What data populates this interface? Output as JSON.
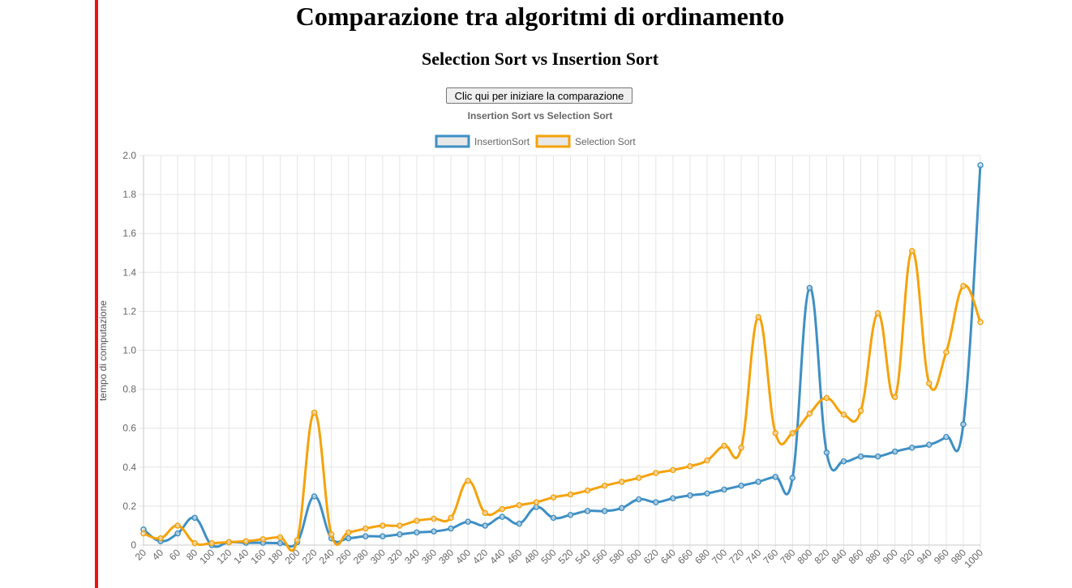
{
  "page": {
    "title": "Comparazione tra algoritmi di ordinamento",
    "subtitle": "Selection Sort vs Insertion Sort",
    "button_label": "Clic qui per iniziare la comparazione",
    "accent_color": "#ee1111"
  },
  "chart_data": {
    "type": "line",
    "title": "Insertion Sort vs Selection Sort",
    "xlabel": "",
    "ylabel": "tempo di computazione",
    "ylim": [
      0,
      2.0
    ],
    "y_ticks": [
      "0",
      "0.2",
      "0.4",
      "0.6",
      "0.8",
      "1.0",
      "1.2",
      "1.4",
      "1.6",
      "1.8",
      "2.0"
    ],
    "grid": true,
    "legend_position": "top",
    "categories": [
      "20",
      "40",
      "60",
      "80",
      "100",
      "120",
      "140",
      "160",
      "180",
      "200",
      "220",
      "240",
      "260",
      "280",
      "300",
      "320",
      "340",
      "360",
      "380",
      "400",
      "420",
      "440",
      "460",
      "480",
      "500",
      "520",
      "540",
      "560",
      "580",
      "600",
      "620",
      "640",
      "660",
      "680",
      "700",
      "720",
      "740",
      "760",
      "780",
      "800",
      "820",
      "840",
      "860",
      "880",
      "900",
      "920",
      "940",
      "960",
      "980",
      "1000"
    ],
    "series": [
      {
        "name": "InsertionSort",
        "color": "#3e8fc4",
        "values": [
          0.08,
          0.02,
          0.06,
          0.14,
          0.0,
          0.015,
          0.012,
          0.012,
          0.01,
          0.015,
          0.25,
          0.035,
          0.035,
          0.045,
          0.045,
          0.055,
          0.065,
          0.07,
          0.085,
          0.12,
          0.1,
          0.145,
          0.11,
          0.195,
          0.14,
          0.155,
          0.175,
          0.175,
          0.19,
          0.235,
          0.22,
          0.24,
          0.255,
          0.265,
          0.285,
          0.305,
          0.325,
          0.35,
          0.345,
          1.32,
          0.475,
          0.43,
          0.455,
          0.455,
          0.48,
          0.5,
          0.515,
          0.555,
          0.62,
          1.95
        ]
      },
      {
        "name": "Selection Sort",
        "color": "#f5a20a",
        "values": [
          0.06,
          0.035,
          0.1,
          0.01,
          0.01,
          0.015,
          0.02,
          0.03,
          0.04,
          0.025,
          0.68,
          0.055,
          0.065,
          0.085,
          0.1,
          0.1,
          0.125,
          0.135,
          0.14,
          0.33,
          0.165,
          0.185,
          0.205,
          0.22,
          0.245,
          0.26,
          0.28,
          0.305,
          0.325,
          0.345,
          0.37,
          0.385,
          0.405,
          0.435,
          0.51,
          0.5,
          1.17,
          0.575,
          0.575,
          0.675,
          0.755,
          0.67,
          0.69,
          1.19,
          0.76,
          1.51,
          0.83,
          0.99,
          1.33,
          1.145
        ]
      }
    ]
  }
}
